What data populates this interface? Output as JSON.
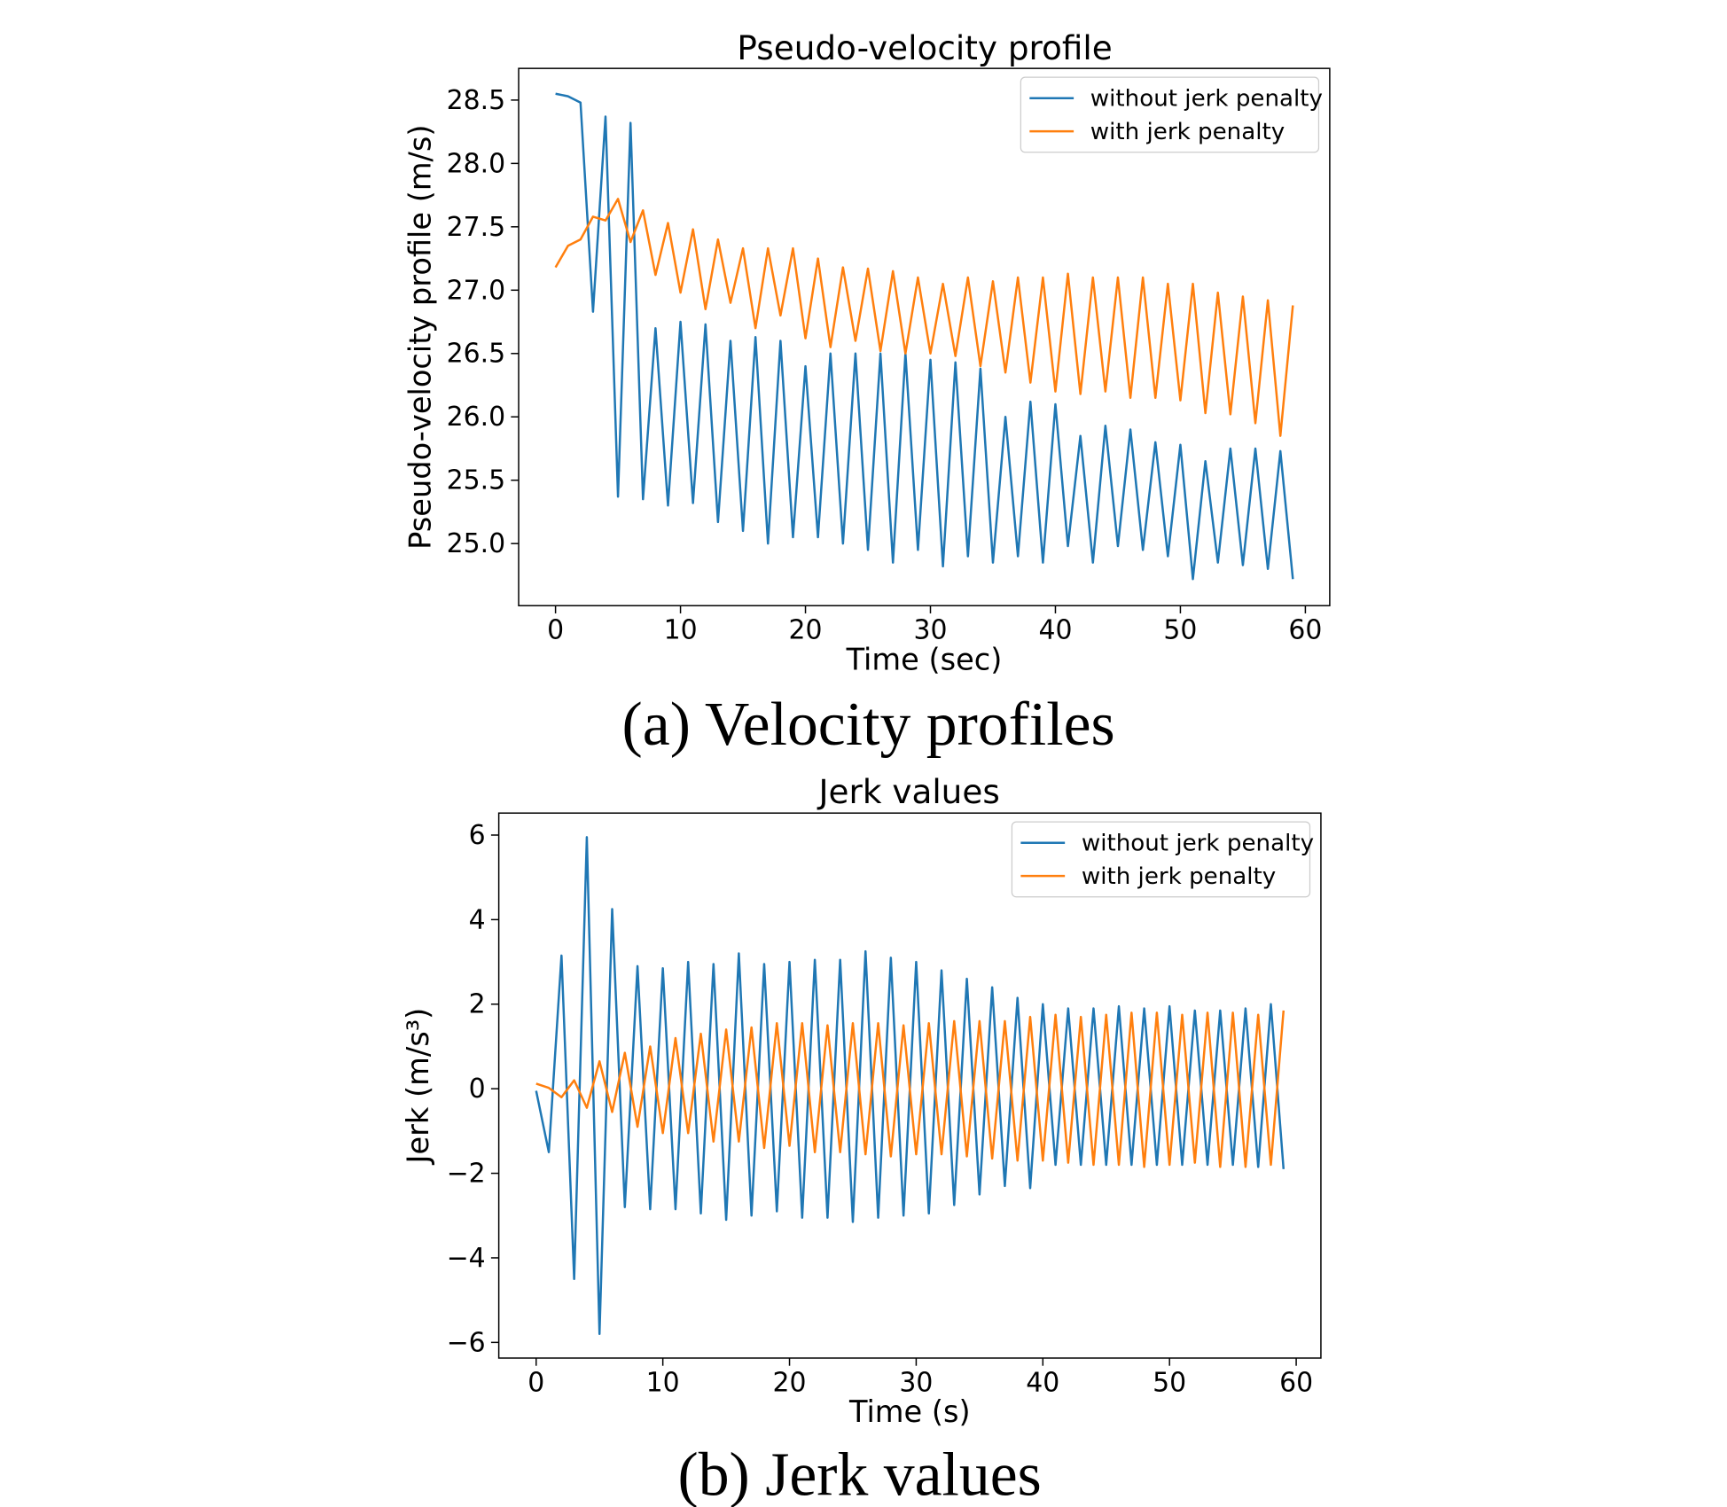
{
  "chart_data": [
    {
      "type": "line",
      "title": "Pseudo-velocity profile",
      "xlabel": "Time (sec)",
      "ylabel": "Pseudo-velocity profile (m/s)",
      "caption": "(a) Velocity profiles",
      "x": [
        0,
        1,
        2,
        3,
        4,
        5,
        6,
        7,
        8,
        9,
        10,
        11,
        12,
        13,
        14,
        15,
        16,
        17,
        18,
        19,
        20,
        21,
        22,
        23,
        24,
        25,
        26,
        27,
        28,
        29,
        30,
        31,
        32,
        33,
        34,
        35,
        36,
        37,
        38,
        39,
        40,
        41,
        42,
        43,
        44,
        45,
        46,
        47,
        48,
        49,
        50,
        51,
        52,
        53,
        54,
        55,
        56,
        57,
        58,
        59
      ],
      "series": [
        {
          "name": "without jerk penalty",
          "color": "#1f77b4",
          "values": [
            28.55,
            28.53,
            28.48,
            26.83,
            28.37,
            25.37,
            28.32,
            25.35,
            26.7,
            25.3,
            26.75,
            25.32,
            26.73,
            25.17,
            26.6,
            25.1,
            26.63,
            25.0,
            26.6,
            25.05,
            26.4,
            25.05,
            26.5,
            25.0,
            26.5,
            24.95,
            26.5,
            24.85,
            26.5,
            24.95,
            26.45,
            24.82,
            26.43,
            24.9,
            26.38,
            24.85,
            26.0,
            24.9,
            26.12,
            24.85,
            26.1,
            24.98,
            25.85,
            24.85,
            25.93,
            24.98,
            25.9,
            24.95,
            25.8,
            24.9,
            25.78,
            24.72,
            25.65,
            24.85,
            25.75,
            24.83,
            25.75,
            24.8,
            25.73,
            24.72
          ]
        },
        {
          "name": "with jerk penalty",
          "color": "#ff7f0e",
          "values": [
            27.18,
            27.35,
            27.4,
            27.58,
            27.55,
            27.72,
            27.38,
            27.63,
            27.12,
            27.53,
            26.98,
            27.48,
            26.85,
            27.4,
            26.9,
            27.33,
            26.7,
            27.33,
            26.8,
            27.33,
            26.62,
            27.25,
            26.55,
            27.18,
            26.6,
            27.17,
            26.52,
            27.15,
            26.5,
            27.1,
            26.5,
            27.05,
            26.48,
            27.1,
            26.4,
            27.07,
            26.35,
            27.1,
            26.27,
            27.1,
            26.2,
            27.13,
            26.18,
            27.1,
            26.2,
            27.1,
            26.15,
            27.1,
            26.15,
            27.05,
            26.13,
            27.05,
            26.03,
            26.98,
            26.02,
            26.95,
            25.95,
            26.92,
            25.85,
            26.88
          ]
        }
      ],
      "xlim": [
        -2.95,
        61.95
      ],
      "xticks": [
        0,
        10,
        20,
        30,
        40,
        50,
        60
      ],
      "ylim": [
        24.51,
        28.75
      ],
      "yticks": [
        {
          "value": 25,
          "label": "25.0"
        },
        25.5,
        {
          "value": 26,
          "label": "26.0"
        },
        26.5,
        {
          "value": 27,
          "label": "27.0"
        },
        27.5,
        {
          "value": 28,
          "label": "28.0"
        },
        28.5
      ],
      "legend": "upper right",
      "grid": false
    },
    {
      "type": "line",
      "title": "Jerk values",
      "xlabel": "Time (s)",
      "ylabel": "Jerk (m/s³)",
      "caption": "(b) Jerk values",
      "x": [
        0,
        1,
        2,
        3,
        4,
        5,
        6,
        7,
        8,
        9,
        10,
        11,
        12,
        13,
        14,
        15,
        16,
        17,
        18,
        19,
        20,
        21,
        22,
        23,
        24,
        25,
        26,
        27,
        28,
        29,
        30,
        31,
        32,
        33,
        34,
        35,
        36,
        37,
        38,
        39,
        40,
        41,
        42,
        43,
        44,
        45,
        46,
        47,
        48,
        49,
        50,
        51,
        52,
        53,
        54,
        55,
        56,
        57,
        58,
        59
      ],
      "series": [
        {
          "name": "without jerk penalty",
          "color": "#1f77b4",
          "values": [
            -0.05,
            -1.5,
            3.15,
            -4.5,
            5.95,
            -5.8,
            4.25,
            -2.8,
            2.9,
            -2.85,
            2.85,
            -2.85,
            3.0,
            -2.95,
            2.95,
            -3.1,
            3.2,
            -3.0,
            2.95,
            -2.9,
            3.0,
            -3.05,
            3.05,
            -3.05,
            3.05,
            -3.15,
            3.25,
            -3.05,
            3.1,
            -3.0,
            3.0,
            -2.95,
            2.8,
            -2.75,
            2.6,
            -2.5,
            2.4,
            -2.3,
            2.15,
            -2.35,
            2.0,
            -1.8,
            1.9,
            -1.8,
            1.9,
            -1.8,
            1.95,
            -1.8,
            1.9,
            -1.8,
            1.95,
            -1.8,
            1.85,
            -1.8,
            1.85,
            -1.8,
            1.9,
            -1.85,
            2.0,
            -1.9
          ]
        },
        {
          "name": "with jerk penalty",
          "color": "#ff7f0e",
          "values": [
            0.12,
            0.02,
            -0.2,
            0.2,
            -0.45,
            0.65,
            -0.55,
            0.85,
            -0.9,
            1.0,
            -1.05,
            1.2,
            -1.05,
            1.3,
            -1.25,
            1.4,
            -1.25,
            1.45,
            -1.4,
            1.55,
            -1.35,
            1.55,
            -1.5,
            1.5,
            -1.5,
            1.55,
            -1.55,
            1.55,
            -1.6,
            1.5,
            -1.55,
            1.55,
            -1.55,
            1.6,
            -1.6,
            1.6,
            -1.65,
            1.6,
            -1.7,
            1.7,
            -1.7,
            1.75,
            -1.75,
            1.7,
            -1.8,
            1.75,
            -1.8,
            1.8,
            -1.85,
            1.8,
            -1.8,
            1.75,
            -1.75,
            1.8,
            -1.85,
            1.8,
            -1.85,
            1.75,
            -1.8,
            1.85
          ]
        }
      ],
      "xlim": [
        -2.95,
        61.95
      ],
      "xticks": [
        0,
        10,
        20,
        30,
        40,
        50,
        60
      ],
      "ylim": [
        -6.37,
        6.52
      ],
      "yticks": [
        {
          "value": -6,
          "label": "−6"
        },
        {
          "value": -4,
          "label": "−4"
        },
        {
          "value": -2,
          "label": "−2"
        },
        0,
        2,
        4,
        6
      ],
      "legend": "upper right",
      "grid": false
    }
  ]
}
